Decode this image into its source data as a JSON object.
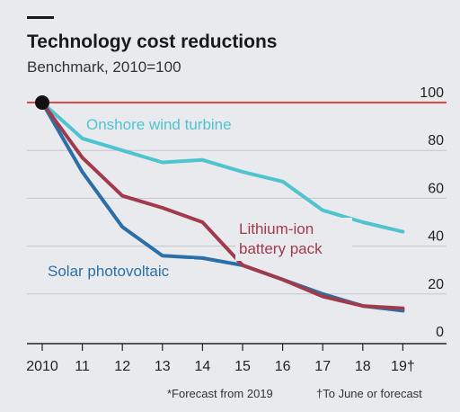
{
  "chart_data": {
    "type": "line",
    "title": "Technology cost reductions",
    "subtitle": "Benchmark, 2010=100",
    "x": [
      "2010",
      "11",
      "12",
      "13",
      "14",
      "15",
      "16",
      "17",
      "18",
      "19†"
    ],
    "ylim": [
      0,
      100
    ],
    "yticks": [
      "0",
      "20",
      "40",
      "60",
      "80",
      "100"
    ],
    "grid": true,
    "series": [
      {
        "name": "Onshore wind turbine",
        "color": "#4fc4cf",
        "values": [
          100,
          85,
          80,
          75,
          76,
          71,
          67,
          55,
          50,
          46
        ]
      },
      {
        "name": "Lithium-ion battery pack",
        "color": "#a13b4b",
        "values": [
          100,
          77,
          61,
          56,
          50,
          32,
          26,
          19,
          15,
          14
        ]
      },
      {
        "name": "Solar photovoltaic",
        "color": "#2a6fa8",
        "values": [
          100,
          71,
          48,
          36,
          35,
          32,
          26,
          20,
          15,
          13
        ]
      }
    ],
    "footnotes": [
      "*Forecast from 2019",
      "†To June or forecast"
    ],
    "reference_color": "#e3120b"
  }
}
